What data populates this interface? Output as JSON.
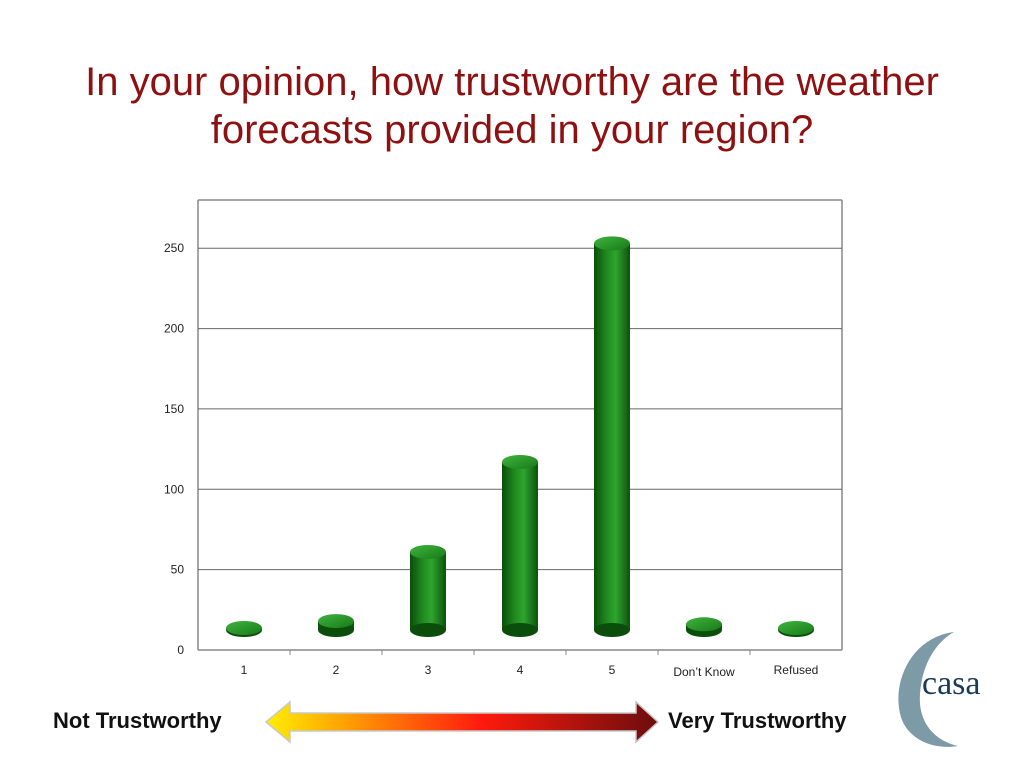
{
  "title": {
    "line1": "In your opinion, how trustworthy are the weather",
    "line2": "forecasts provided in your region?"
  },
  "scale": {
    "left_label": "Not Trustworthy",
    "right_label": "Very Trustworthy"
  },
  "logo": {
    "text": "casa"
  },
  "colors": {
    "title": "#8e1010",
    "bar_dark": "#0b4d0b",
    "bar_mid": "#1f8a1f",
    "bar_light": "#3fb43f",
    "arrow_start": "#ffee00",
    "arrow_mid": "#ff1a0d",
    "arrow_end": "#6b0d0d",
    "logo_text": "#1a3a5a",
    "logo_swoosh": "#7d9aa7"
  },
  "chart_data": {
    "type": "bar",
    "style": "3d-cylinder",
    "categories": [
      "1",
      "2",
      "3",
      "4",
      "5",
      "Don’t Know",
      "Refused"
    ],
    "values": [
      12,
      18,
      61,
      117,
      253,
      16,
      9
    ],
    "yticks": [
      0,
      50,
      100,
      150,
      200,
      250
    ],
    "ylim": [
      0,
      280
    ],
    "grid": true,
    "legend": "none",
    "title": "",
    "xlabel": "",
    "ylabel": ""
  }
}
